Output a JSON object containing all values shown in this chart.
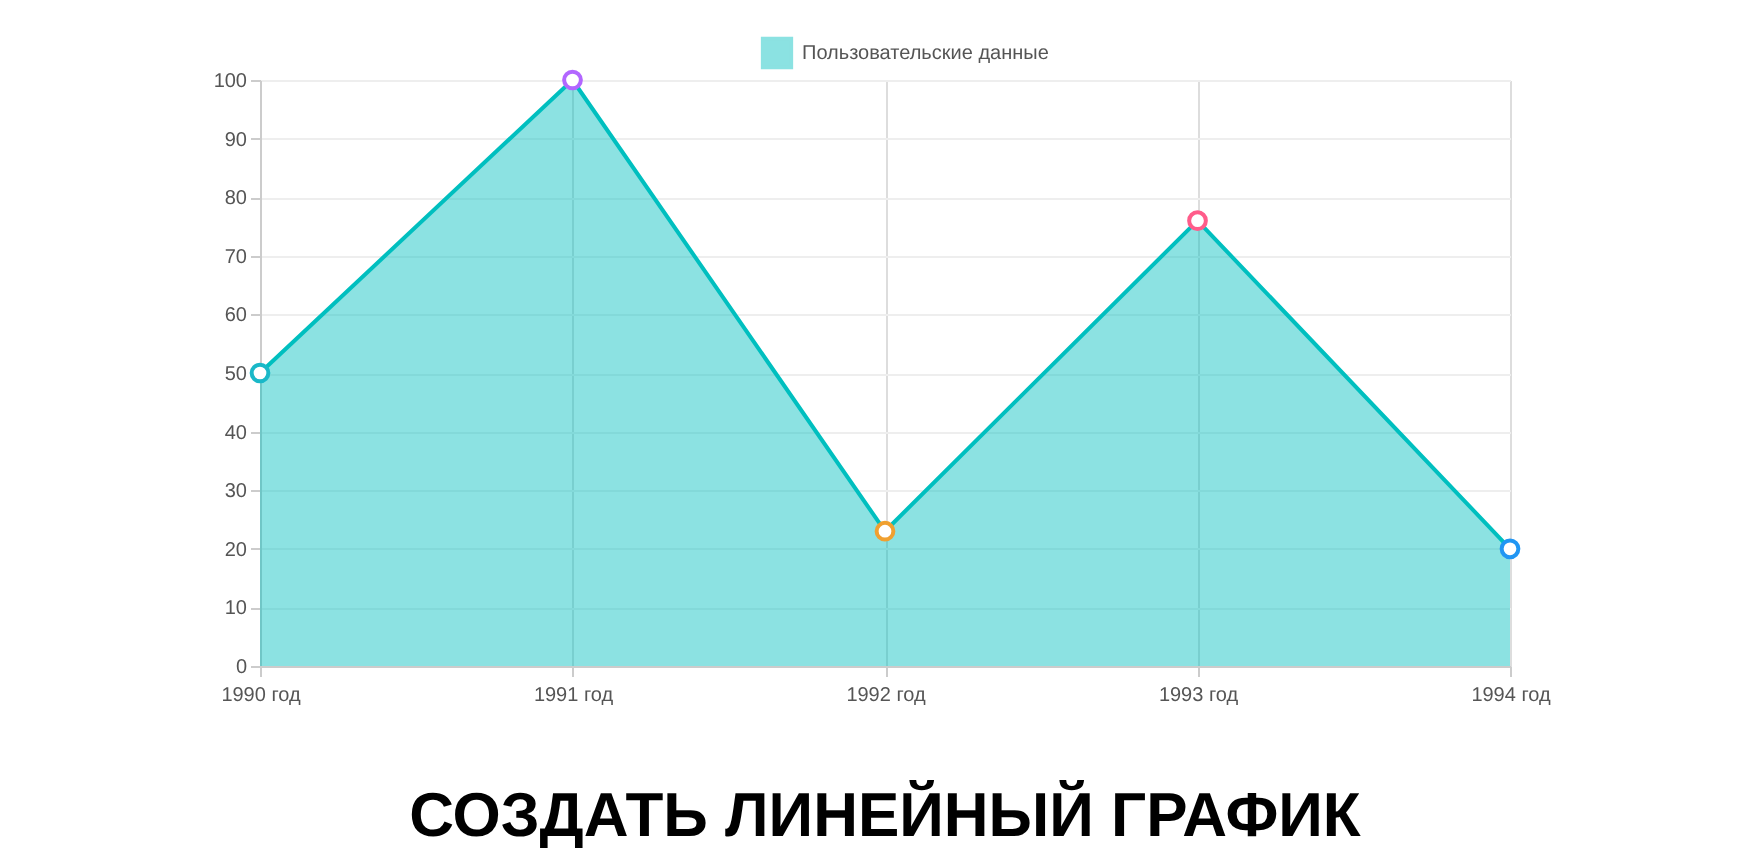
{
  "chart_data": {
    "type": "area",
    "title": "СОЗДАТЬ ЛИНЕЙНЫЙ ГРАФИК",
    "categories": [
      "1990 год",
      "1991 год",
      "1992 год",
      "1993 год",
      "1994 год"
    ],
    "series": [
      {
        "name": "Пользовательские данные",
        "color": "#00bfbf",
        "values": [
          50,
          100,
          23,
          76,
          20
        ]
      }
    ],
    "colors": [
      "#1ab8c8",
      "#b266ff",
      "#f0a030",
      "#ff5c8a",
      "#2196f3"
    ],
    "ylim": [
      0,
      100
    ],
    "yticks": [
      0,
      10,
      20,
      30,
      40,
      50,
      60,
      70,
      80,
      90,
      100
    ],
    "grid": true,
    "legend": "top",
    "marker": "circle"
  }
}
